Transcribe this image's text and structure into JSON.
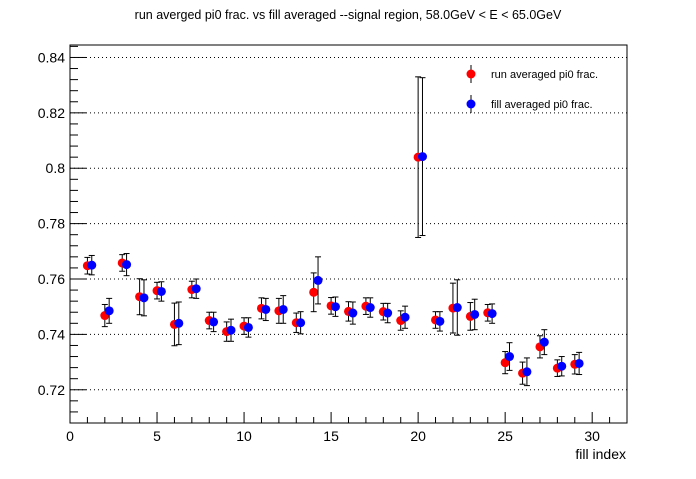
{
  "chart_data": {
    "type": "scatter",
    "title": "run averged pi0 frac. vs fill averaged --signal region, 58.0GeV < E < 65.0GeV",
    "xlabel": "fill index",
    "ylabel": "",
    "xlim": [
      0,
      32
    ],
    "ylim": [
      0.708,
      0.8445
    ],
    "x_ticks": [
      0,
      5,
      10,
      15,
      20,
      25,
      30
    ],
    "y_ticks": [
      0.72,
      0.74,
      0.76,
      0.78,
      0.8,
      0.82,
      0.84
    ],
    "y_tick_labels": [
      "0.72",
      "0.74",
      "0.76",
      "0.78",
      "0.8",
      "0.82",
      "0.84"
    ],
    "grid": "horizontal dotted",
    "legend_position": "top-right",
    "series": [
      {
        "name": "run averaged pi0 frac.",
        "color": "#ff0000",
        "x": [
          1,
          2,
          3,
          4,
          5,
          6,
          7,
          8,
          9,
          10,
          11,
          12,
          13,
          14,
          15,
          16,
          17,
          18,
          19,
          20,
          21,
          22,
          23,
          24,
          25,
          26,
          27,
          28,
          29
        ],
        "y": [
          0.7648,
          0.7468,
          0.7658,
          0.7536,
          0.7558,
          0.7436,
          0.7562,
          0.745,
          0.741,
          0.743,
          0.7494,
          0.7485,
          0.7442,
          0.7552,
          0.7503,
          0.7483,
          0.7502,
          0.7482,
          0.745,
          0.804,
          0.7452,
          0.7495,
          0.7465,
          0.7478,
          0.7298,
          0.726,
          0.7355,
          0.7278,
          0.7292
        ],
        "err": [
          0.003,
          0.004,
          0.003,
          0.0065,
          0.003,
          0.0077,
          0.003,
          0.003,
          0.0035,
          0.003,
          0.0038,
          0.0045,
          0.0035,
          0.007,
          0.003,
          0.0035,
          0.003,
          0.003,
          0.0035,
          0.029,
          0.003,
          0.009,
          0.005,
          0.003,
          0.004,
          0.004,
          0.004,
          0.003,
          0.0035
        ]
      },
      {
        "name": "fill averaged pi0 frac.",
        "color": "#0000ff",
        "x": [
          1.25,
          2.25,
          3.25,
          4.25,
          5.25,
          6.25,
          7.25,
          8.25,
          9.25,
          10.25,
          11.25,
          12.25,
          13.25,
          14.25,
          15.25,
          16.25,
          17.25,
          18.25,
          19.25,
          20.25,
          21.25,
          22.25,
          23.25,
          24.25,
          25.25,
          26.25,
          27.25,
          28.25,
          29.25
        ],
        "y": [
          0.765,
          0.7485,
          0.7652,
          0.7532,
          0.7555,
          0.744,
          0.7565,
          0.7445,
          0.7415,
          0.7425,
          0.749,
          0.749,
          0.7442,
          0.7595,
          0.75,
          0.7477,
          0.7497,
          0.7477,
          0.7462,
          0.8042,
          0.7447,
          0.7497,
          0.7472,
          0.7475,
          0.732,
          0.7265,
          0.7372,
          0.7285,
          0.7295
        ],
        "err": [
          0.0035,
          0.0045,
          0.004,
          0.0065,
          0.0035,
          0.0077,
          0.0035,
          0.0035,
          0.004,
          0.0035,
          0.004,
          0.005,
          0.004,
          0.0085,
          0.0035,
          0.004,
          0.0035,
          0.0035,
          0.004,
          0.0285,
          0.0035,
          0.01,
          0.0055,
          0.0035,
          0.005,
          0.005,
          0.0045,
          0.0035,
          0.004
        ]
      }
    ]
  }
}
